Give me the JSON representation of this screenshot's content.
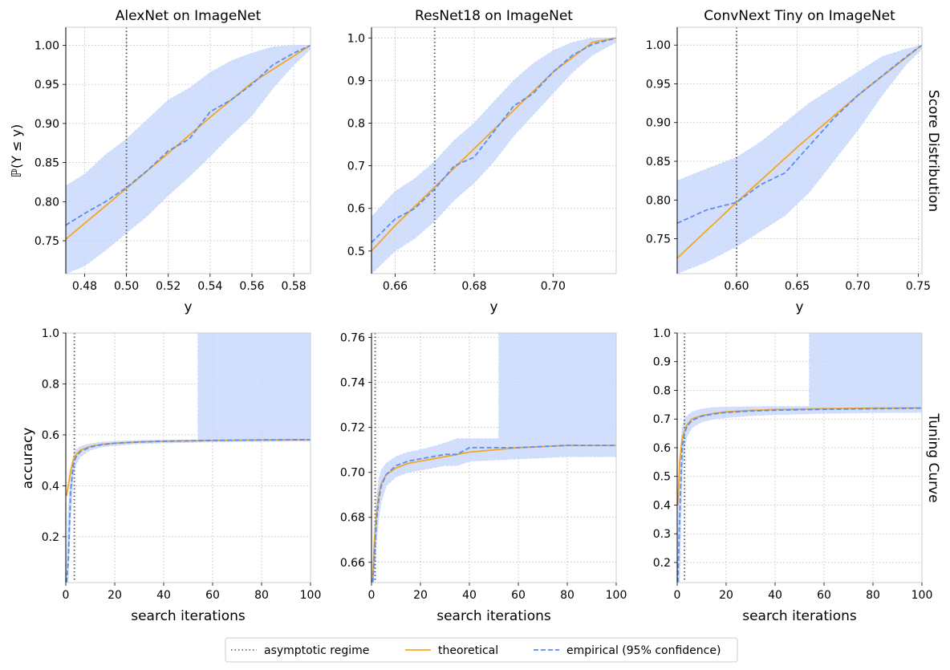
{
  "figure": {
    "row_labels": [
      "Score Distribution",
      "Tuning Curve"
    ],
    "ylabel_top": "ℙ(Y ≤ y)",
    "ylabel_bottom": "accuracy",
    "xlabel_top": "y",
    "xlabel_bottom": "search iterations"
  },
  "legend": [
    {
      "label": "asymptotic regime",
      "style": "dotted",
      "color": "#555555"
    },
    {
      "label": "theoretical",
      "style": "solid",
      "color": "#f5a623"
    },
    {
      "label": "empirical (95% confidence)",
      "style": "dashed",
      "color": "#5b8def"
    }
  ],
  "colors": {
    "theoretical": "#f5a623",
    "empirical": "#5b8def",
    "band": "#c6d6fb",
    "asymptote": "#555555",
    "grid": "#b8b8b8"
  },
  "chart_data": [
    {
      "type": "line",
      "title": "AlexNet on ImageNet",
      "xlabel": "y",
      "ylabel": "ℙ(Y ≤ y)",
      "xlim": [
        0.471,
        0.588
      ],
      "ylim": [
        0.708,
        1.023
      ],
      "xticks": [
        0.48,
        0.5,
        0.52,
        0.54,
        0.56,
        0.58
      ],
      "xtick_labels": [
        "0.48",
        "0.50",
        "0.52",
        "0.54",
        "0.56",
        "0.58"
      ],
      "yticks": [
        0.75,
        0.8,
        0.85,
        0.9,
        0.95,
        1.0
      ],
      "ytick_labels": [
        "0.75",
        "0.80",
        "0.85",
        "0.90",
        "0.95",
        "1.00"
      ],
      "asymptote_x": 0.5,
      "theoretical": {
        "x": [
          0.471,
          0.5,
          0.52,
          0.54,
          0.56,
          0.588
        ],
        "y": [
          0.752,
          0.817,
          0.862,
          0.908,
          0.952,
          1.0
        ]
      },
      "empirical": {
        "x": [
          0.471,
          0.48,
          0.49,
          0.5,
          0.51,
          0.52,
          0.53,
          0.54,
          0.55,
          0.56,
          0.57,
          0.58,
          0.588
        ],
        "y": [
          0.77,
          0.785,
          0.8,
          0.818,
          0.84,
          0.865,
          0.88,
          0.915,
          0.93,
          0.95,
          0.975,
          0.99,
          1.0
        ]
      },
      "band_upper": [
        0.82,
        0.835,
        0.86,
        0.88,
        0.905,
        0.93,
        0.945,
        0.965,
        0.98,
        0.99,
        0.998,
        1.0,
        1.0
      ],
      "band_lower": [
        0.708,
        0.718,
        0.738,
        0.76,
        0.782,
        0.808,
        0.832,
        0.858,
        0.885,
        0.91,
        0.945,
        0.975,
        0.995
      ]
    },
    {
      "type": "line",
      "title": "ResNet18 on ImageNet",
      "xlabel": "y",
      "ylabel": "",
      "xlim": [
        0.654,
        0.716
      ],
      "ylim": [
        0.447,
        1.025
      ],
      "xticks": [
        0.66,
        0.68,
        0.7
      ],
      "xtick_labels": [
        "0.66",
        "0.68",
        "0.70"
      ],
      "yticks": [
        0.5,
        0.6,
        0.7,
        0.8,
        0.9,
        1.0
      ],
      "ytick_labels": [
        "0.5",
        "0.6",
        "0.7",
        "0.8",
        "0.9",
        "1.0"
      ],
      "asymptote_x": 0.67,
      "theoretical": {
        "x": [
          0.654,
          0.66,
          0.67,
          0.68,
          0.69,
          0.7,
          0.71,
          0.716
        ],
        "y": [
          0.5,
          0.56,
          0.65,
          0.74,
          0.83,
          0.92,
          0.99,
          1.0
        ]
      },
      "empirical": {
        "x": [
          0.654,
          0.66,
          0.665,
          0.67,
          0.675,
          0.68,
          0.685,
          0.69,
          0.695,
          0.7,
          0.705,
          0.71,
          0.716
        ],
        "y": [
          0.52,
          0.575,
          0.6,
          0.645,
          0.7,
          0.72,
          0.78,
          0.84,
          0.87,
          0.92,
          0.96,
          0.985,
          1.0
        ]
      },
      "band_upper": [
        0.58,
        0.64,
        0.67,
        0.71,
        0.76,
        0.8,
        0.85,
        0.9,
        0.94,
        0.97,
        0.99,
        1.0,
        1.0
      ],
      "band_lower": [
        0.447,
        0.5,
        0.53,
        0.57,
        0.62,
        0.66,
        0.71,
        0.77,
        0.82,
        0.87,
        0.92,
        0.96,
        0.99
      ]
    },
    {
      "type": "line",
      "title": "ConvNext Tiny on ImageNet",
      "xlabel": "y",
      "ylabel": "",
      "xlim": [
        0.551,
        0.753
      ],
      "ylim": [
        0.705,
        1.023
      ],
      "xticks": [
        0.6,
        0.65,
        0.7,
        0.75
      ],
      "xtick_labels": [
        "0.60",
        "0.65",
        "0.70",
        "0.75"
      ],
      "yticks": [
        0.75,
        0.8,
        0.85,
        0.9,
        0.95,
        1.0
      ],
      "ytick_labels": [
        "0.75",
        "0.80",
        "0.85",
        "0.90",
        "0.95",
        "1.00"
      ],
      "asymptote_x": 0.6,
      "theoretical": {
        "x": [
          0.551,
          0.6,
          0.65,
          0.7,
          0.753
        ],
        "y": [
          0.725,
          0.797,
          0.868,
          0.935,
          1.0
        ]
      },
      "empirical": {
        "x": [
          0.551,
          0.575,
          0.6,
          0.62,
          0.64,
          0.66,
          0.68,
          0.7,
          0.72,
          0.74,
          0.753
        ],
        "y": [
          0.77,
          0.787,
          0.797,
          0.82,
          0.835,
          0.87,
          0.905,
          0.935,
          0.96,
          0.985,
          1.0
        ]
      },
      "band_upper": [
        0.825,
        0.84,
        0.855,
        0.875,
        0.9,
        0.925,
        0.945,
        0.965,
        0.985,
        0.995,
        1.0
      ],
      "band_lower": [
        0.705,
        0.72,
        0.74,
        0.76,
        0.78,
        0.81,
        0.85,
        0.89,
        0.935,
        0.975,
        0.995
      ]
    },
    {
      "type": "line",
      "title": "",
      "xlabel": "search iterations",
      "ylabel": "accuracy",
      "xlim": [
        0,
        100
      ],
      "ylim": [
        0.02,
        1.0
      ],
      "xticks": [
        0,
        20,
        40,
        60,
        80,
        100
      ],
      "xtick_labels": [
        "0",
        "20",
        "40",
        "60",
        "80",
        "100"
      ],
      "yticks": [
        0.2,
        0.4,
        0.6,
        0.8,
        1.0
      ],
      "ytick_labels": [
        "0.2",
        "0.4",
        "0.6",
        "0.8",
        "1.0"
      ],
      "asymptote_x": 3.5,
      "theoretical": {
        "x": [
          0.3,
          1,
          2,
          3,
          4,
          6,
          10,
          15,
          20,
          30,
          40,
          60,
          80,
          100
        ],
        "y": [
          0.36,
          0.4,
          0.46,
          0.5,
          0.52,
          0.54,
          0.555,
          0.563,
          0.567,
          0.572,
          0.575,
          0.578,
          0.58,
          0.581
        ]
      },
      "empirical": {
        "x": [
          0.3,
          1,
          2,
          3,
          4,
          6,
          10,
          15,
          20,
          30,
          40,
          60,
          80,
          100
        ],
        "y": [
          0.02,
          0.1,
          0.38,
          0.48,
          0.51,
          0.535,
          0.552,
          0.562,
          0.567,
          0.572,
          0.575,
          0.578,
          0.58,
          0.581
        ]
      },
      "band_upper": [
        0.1,
        0.3,
        0.45,
        0.52,
        0.54,
        0.555,
        0.565,
        0.572,
        0.575,
        0.578,
        0.58,
        1.0,
        1.0,
        1.0
      ],
      "band_lower": [
        0.02,
        0.02,
        0.28,
        0.44,
        0.48,
        0.515,
        0.54,
        0.553,
        0.558,
        0.565,
        0.568,
        0.572,
        0.574,
        0.575
      ],
      "band_step_x": 54
    },
    {
      "type": "line",
      "title": "",
      "xlabel": "search iterations",
      "ylabel": "",
      "xlim": [
        0,
        100
      ],
      "ylim": [
        0.651,
        0.762
      ],
      "xticks": [
        0,
        20,
        40,
        60,
        80,
        100
      ],
      "xtick_labels": [
        "0",
        "20",
        "40",
        "60",
        "80",
        "100"
      ],
      "yticks": [
        0.66,
        0.68,
        0.7,
        0.72,
        0.74,
        0.76
      ],
      "ytick_labels": [
        "0.66",
        "0.68",
        "0.70",
        "0.72",
        "0.74",
        "0.76"
      ],
      "asymptote_x": 1.5,
      "theoretical": {
        "x": [
          0.5,
          1,
          2,
          3,
          4,
          6,
          10,
          15,
          20,
          30,
          40,
          60,
          80,
          100
        ],
        "y": [
          0.651,
          0.666,
          0.681,
          0.69,
          0.695,
          0.699,
          0.702,
          0.704,
          0.705,
          0.707,
          0.709,
          0.711,
          0.712,
          0.712
        ]
      },
      "empirical": {
        "x": [
          0.5,
          1,
          2,
          3,
          4,
          6,
          10,
          15,
          20,
          30,
          35,
          40,
          60,
          80,
          100
        ],
        "y": [
          0.651,
          0.66,
          0.678,
          0.688,
          0.694,
          0.699,
          0.703,
          0.705,
          0.706,
          0.708,
          0.708,
          0.711,
          0.711,
          0.712,
          0.712
        ]
      },
      "band_upper": [
        0.651,
        0.672,
        0.688,
        0.697,
        0.701,
        0.704,
        0.707,
        0.709,
        0.71,
        0.713,
        0.715,
        0.715,
        0.762,
        0.762,
        0.762
      ],
      "band_lower": [
        0.651,
        0.651,
        0.668,
        0.68,
        0.687,
        0.694,
        0.698,
        0.7,
        0.701,
        0.703,
        0.703,
        0.705,
        0.706,
        0.707,
        0.707
      ],
      "band_step_x": 52
    },
    {
      "type": "line",
      "title": "",
      "xlabel": "search iterations",
      "ylabel": "",
      "xlim": [
        0,
        100
      ],
      "ylim": [
        0.13,
        1.0
      ],
      "xticks": [
        0,
        20,
        40,
        60,
        80,
        100
      ],
      "xtick_labels": [
        "0",
        "20",
        "40",
        "60",
        "80",
        "100"
      ],
      "yticks": [
        0.2,
        0.3,
        0.4,
        0.5,
        0.6,
        0.7,
        0.8,
        0.9,
        1.0
      ],
      "ytick_labels": [
        "0.2",
        "0.3",
        "0.4",
        "0.5",
        "0.6",
        "0.7",
        "0.8",
        "0.9",
        "1.0"
      ],
      "asymptote_x": 3,
      "theoretical": {
        "x": [
          0.3,
          1,
          2,
          3,
          4,
          6,
          10,
          15,
          20,
          30,
          40,
          60,
          80,
          100
        ],
        "y": [
          0.4,
          0.55,
          0.63,
          0.66,
          0.68,
          0.7,
          0.712,
          0.72,
          0.725,
          0.73,
          0.733,
          0.736,
          0.738,
          0.739
        ]
      },
      "empirical": {
        "x": [
          0.3,
          1,
          2,
          3,
          4,
          6,
          10,
          15,
          20,
          30,
          40,
          60,
          80,
          100
        ],
        "y": [
          0.13,
          0.35,
          0.6,
          0.65,
          0.675,
          0.695,
          0.71,
          0.718,
          0.723,
          0.728,
          0.731,
          0.734,
          0.736,
          0.738
        ]
      },
      "band_upper": [
        0.3,
        0.55,
        0.67,
        0.7,
        0.71,
        0.725,
        0.735,
        0.74,
        0.742,
        0.743,
        0.744,
        1.0,
        1.0,
        1.0
      ],
      "band_lower": [
        0.13,
        0.13,
        0.5,
        0.6,
        0.64,
        0.67,
        0.69,
        0.7,
        0.705,
        0.712,
        0.715,
        0.72,
        0.722,
        0.723
      ],
      "band_step_x": 54
    }
  ]
}
